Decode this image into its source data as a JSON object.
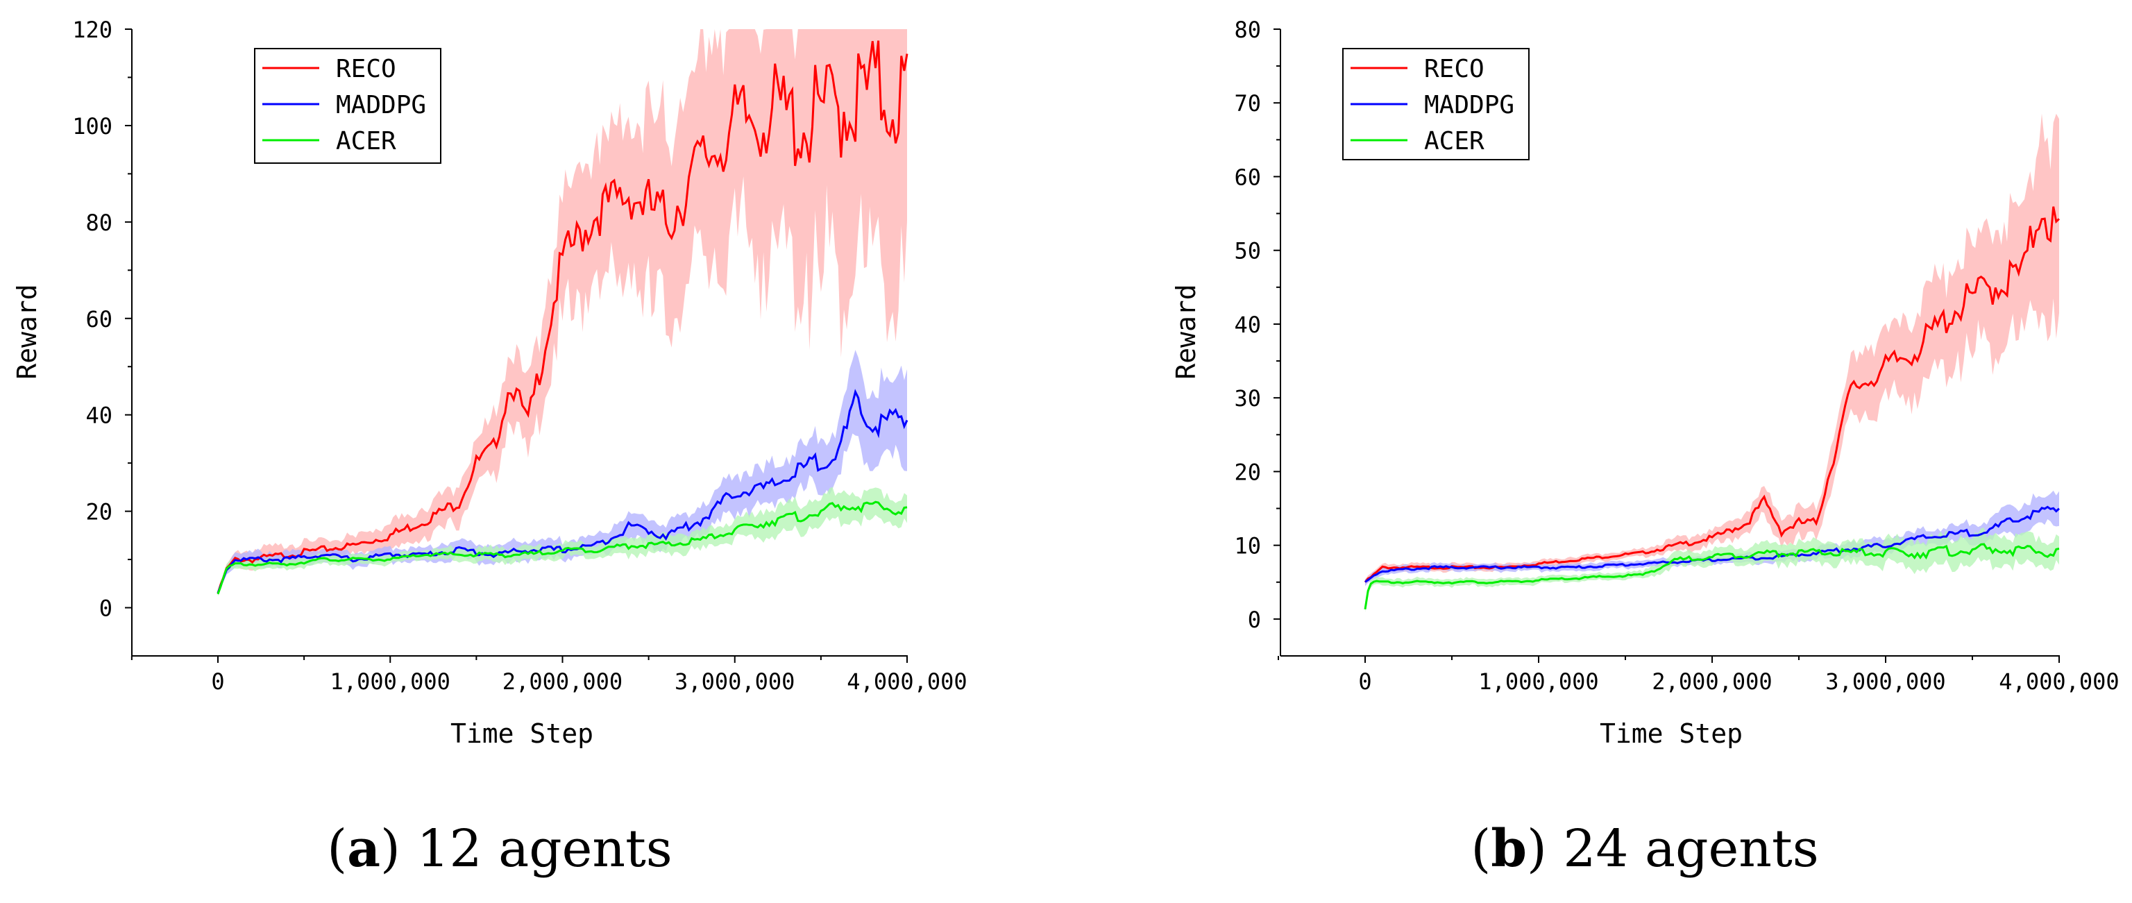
{
  "chart_data": [
    {
      "type": "line",
      "caption": {
        "label": "a",
        "text": "12 agents"
      },
      "xlabel": "Time Step",
      "ylabel": "Reward",
      "xlim": [
        -500000,
        4000000
      ],
      "ylim": [
        -10,
        120
      ],
      "x_ticks": [
        0,
        1000000,
        2000000,
        3000000,
        4000000
      ],
      "x_tick_labels": [
        "0",
        "1,000,000",
        "2,000,000",
        "3,000,000",
        "4,000,000"
      ],
      "y_ticks": [
        0,
        20,
        40,
        60,
        80,
        100,
        120
      ],
      "y_tick_labels": [
        "0",
        "20",
        "40",
        "60",
        "80",
        "100",
        "120"
      ],
      "legend": {
        "position": "top-left",
        "entries": [
          "RECO",
          "MADDPG",
          "ACER"
        ]
      },
      "series": [
        {
          "name": "RECO",
          "color": "#ff0000",
          "band_color": "#ffb6b6",
          "x": [
            0,
            50000,
            100000,
            200000,
            400000,
            600000,
            800000,
            1000000,
            1200000,
            1400000,
            1500000,
            1600000,
            1700000,
            1800000,
            1900000,
            2000000,
            2200000,
            2400000,
            2600000,
            2800000,
            3000000,
            3200000,
            3400000,
            3600000,
            3800000,
            4000000
          ],
          "values": [
            3,
            8,
            10,
            10,
            11,
            12,
            13,
            15,
            18,
            22,
            30,
            33,
            47,
            38,
            55,
            72,
            82,
            86,
            80,
            92,
            100,
            103,
            100,
            104,
            107,
            106
          ],
          "spread": [
            0.5,
            1,
            1.5,
            2,
            2,
            2,
            2,
            3,
            3,
            4,
            5,
            6,
            8,
            8,
            10,
            13,
            15,
            17,
            20,
            22,
            25,
            30,
            32,
            35,
            36,
            38
          ]
        },
        {
          "name": "MADDPG",
          "color": "#0000ff",
          "band_color": "#b4b4ff",
          "x": [
            0,
            50000,
            100000,
            200000,
            400000,
            600000,
            800000,
            1000000,
            1200000,
            1400000,
            1600000,
            1800000,
            2000000,
            2200000,
            2400000,
            2600000,
            2800000,
            3000000,
            3200000,
            3400000,
            3600000,
            3700000,
            3800000,
            4000000
          ],
          "values": [
            3,
            8,
            10,
            10,
            10,
            11,
            10,
            11,
            11,
            12,
            11,
            12,
            12,
            13,
            17,
            15,
            18,
            24,
            25,
            29,
            32,
            42,
            38,
            39
          ],
          "spread": [
            0.5,
            1,
            1.5,
            1.5,
            1.5,
            1.5,
            1.5,
            1.5,
            1.5,
            2,
            2,
            2,
            2,
            2,
            3,
            3,
            3,
            4,
            4,
            5,
            6,
            8,
            8,
            9
          ]
        },
        {
          "name": "ACER",
          "color": "#00ee00",
          "band_color": "#b6f5b6",
          "x": [
            0,
            50000,
            100000,
            200000,
            400000,
            600000,
            800000,
            1000000,
            1200000,
            1400000,
            1600000,
            1800000,
            2000000,
            2200000,
            2400000,
            2600000,
            2800000,
            3000000,
            3200000,
            3400000,
            3600000,
            3800000,
            4000000
          ],
          "values": [
            3,
            8,
            9,
            9,
            9,
            10,
            10,
            10,
            11,
            11,
            11,
            11,
            12,
            12,
            13,
            13,
            14,
            16,
            18,
            19,
            21,
            21,
            20
          ],
          "spread": [
            0.5,
            1,
            1,
            1,
            1,
            1,
            1,
            1,
            1,
            1.5,
            1.5,
            1.5,
            1.5,
            1.5,
            2,
            2,
            2,
            2,
            3,
            3,
            3,
            3,
            3
          ]
        }
      ]
    },
    {
      "type": "line",
      "caption": {
        "label": "b",
        "text": "24 agents"
      },
      "xlabel": "Time Step",
      "ylabel": "Reward",
      "xlim": [
        -500000,
        4000000
      ],
      "ylim": [
        -5,
        80
      ],
      "x_ticks": [
        0,
        1000000,
        2000000,
        3000000,
        4000000
      ],
      "x_tick_labels": [
        "0",
        "1,000,000",
        "2,000,000",
        "3,000,000",
        "4,000,000"
      ],
      "y_ticks": [
        0,
        10,
        20,
        30,
        40,
        50,
        60,
        70,
        80
      ],
      "y_tick_labels": [
        "0",
        "10",
        "20",
        "30",
        "40",
        "50",
        "60",
        "70",
        "80"
      ],
      "legend": {
        "position": "top-left",
        "entries": [
          "RECO",
          "MADDPG",
          "ACER"
        ]
      },
      "series": [
        {
          "name": "RECO",
          "color": "#ff0000",
          "band_color": "#ffb6b6",
          "x": [
            0,
            50000,
            100000,
            400000,
            800000,
            1200000,
            1600000,
            1800000,
            2000000,
            2200000,
            2300000,
            2400000,
            2500000,
            2600000,
            2700000,
            2800000,
            3000000,
            3200000,
            3400000,
            3600000,
            3800000,
            3900000,
            4000000
          ],
          "values": [
            5,
            6,
            7,
            7,
            7,
            8,
            9,
            10,
            11,
            13,
            16,
            12,
            13,
            13,
            22,
            31,
            34,
            37,
            42,
            45,
            47,
            57,
            51
          ],
          "spread": [
            0.5,
            0.5,
            0.5,
            0.5,
            0.5,
            0.5,
            0.5,
            1,
            1,
            1.5,
            2,
            2,
            2,
            2,
            3,
            4,
            5,
            6,
            7,
            8,
            9,
            12,
            14
          ]
        },
        {
          "name": "MADDPG",
          "color": "#0000ff",
          "band_color": "#b4b4ff",
          "x": [
            0,
            50000,
            100000,
            400000,
            800000,
            1200000,
            1600000,
            2000000,
            2400000,
            2800000,
            3000000,
            3200000,
            3400000,
            3600000,
            3800000,
            4000000
          ],
          "values": [
            5,
            6,
            6.5,
            7,
            7,
            7,
            7.5,
            8,
            8.5,
            9.5,
            10,
            11,
            11.5,
            12,
            14,
            15
          ],
          "spread": [
            0.5,
            0.5,
            0.5,
            0.5,
            0.5,
            0.5,
            0.5,
            0.5,
            0.8,
            1,
            1,
            1,
            1.2,
            1.5,
            2,
            2
          ]
        },
        {
          "name": "ACER",
          "color": "#00ee00",
          "band_color": "#b6f5b6",
          "x": [
            0,
            20000,
            50000,
            100000,
            400000,
            800000,
            1200000,
            1600000,
            1800000,
            2000000,
            2400000,
            2800000,
            3200000,
            3600000,
            4000000
          ],
          "values": [
            1.5,
            4.5,
            5,
            5,
            5,
            5,
            5.5,
            6,
            8,
            8.5,
            9,
            9,
            9,
            9.5,
            9
          ],
          "spread": [
            0.5,
            0.5,
            0.5,
            0.5,
            0.5,
            0.5,
            0.5,
            0.5,
            1,
            1,
            1.5,
            1.5,
            2,
            2,
            2
          ]
        }
      ]
    }
  ]
}
